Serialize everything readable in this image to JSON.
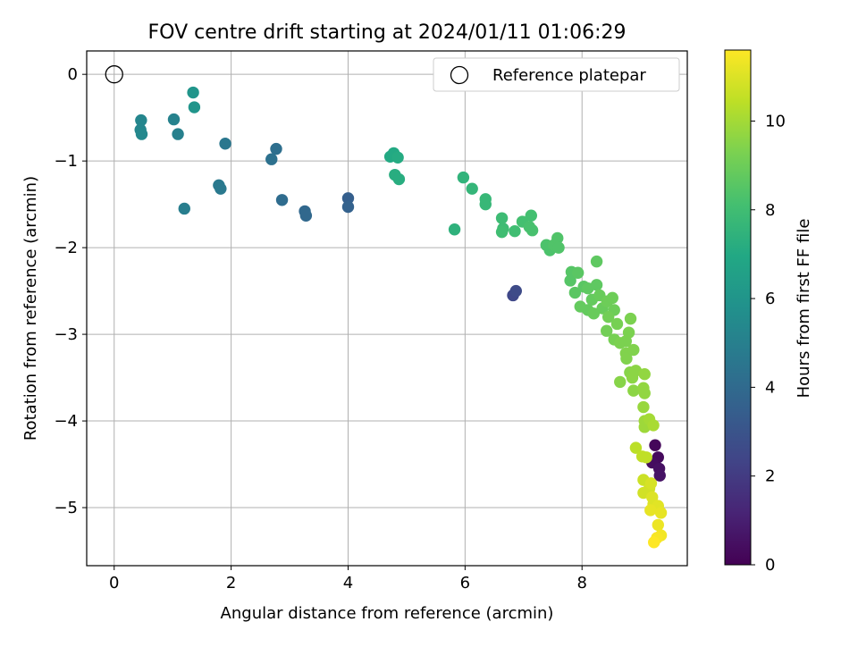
{
  "chart_data": {
    "type": "scatter",
    "title": "FOV centre drift starting at 2024/01/11 01:06:29",
    "xlabel": "Angular distance from reference (arcmin)",
    "ylabel": "Rotation from reference (arcmin)",
    "xlim": [
      -0.47,
      9.8
    ],
    "ylim": [
      -5.67,
      0.27
    ],
    "xticks": [
      0,
      2,
      4,
      6,
      8
    ],
    "yticks": [
      0,
      -1,
      -2,
      -3,
      -4,
      -5
    ],
    "grid": true,
    "legend": {
      "position": "top-right",
      "entries": [
        "Reference platepar"
      ]
    },
    "reference_point": {
      "x": 0,
      "y": 0
    },
    "colorbar": {
      "label": "Hours from first FF file",
      "colormap": "viridis",
      "range": [
        0,
        11.6
      ],
      "ticks": [
        0,
        2,
        4,
        6,
        8,
        10
      ]
    },
    "points": [
      {
        "x": 9.25,
        "y": -4.28,
        "h": 0.2
      },
      {
        "x": 9.3,
        "y": -4.42,
        "h": 0.3
      },
      {
        "x": 9.2,
        "y": -4.48,
        "h": 0.4
      },
      {
        "x": 9.32,
        "y": -4.55,
        "h": 0.5
      },
      {
        "x": 9.33,
        "y": -4.63,
        "h": 0.6
      },
      {
        "x": 6.82,
        "y": -2.55,
        "h": 2.5
      },
      {
        "x": 6.87,
        "y": -2.5,
        "h": 2.6
      },
      {
        "x": 4.0,
        "y": -1.43,
        "h": 3.5
      },
      {
        "x": 4.0,
        "y": -1.53,
        "h": 3.6
      },
      {
        "x": 3.26,
        "y": -1.58,
        "h": 3.9
      },
      {
        "x": 3.28,
        "y": -1.63,
        "h": 3.9
      },
      {
        "x": 2.87,
        "y": -1.45,
        "h": 4.1
      },
      {
        "x": 2.77,
        "y": -0.86,
        "h": 4.2
      },
      {
        "x": 2.69,
        "y": -0.98,
        "h": 4.3
      },
      {
        "x": 1.9,
        "y": -0.8,
        "h": 4.6
      },
      {
        "x": 1.79,
        "y": -1.28,
        "h": 4.7
      },
      {
        "x": 1.82,
        "y": -1.32,
        "h": 4.7
      },
      {
        "x": 1.2,
        "y": -1.55,
        "h": 4.9
      },
      {
        "x": 1.09,
        "y": -0.69,
        "h": 5.0
      },
      {
        "x": 1.02,
        "y": -0.52,
        "h": 5.1
      },
      {
        "x": 0.46,
        "y": -0.53,
        "h": 5.3
      },
      {
        "x": 0.45,
        "y": -0.64,
        "h": 5.3
      },
      {
        "x": 0.47,
        "y": -0.69,
        "h": 5.4
      },
      {
        "x": 1.35,
        "y": -0.21,
        "h": 6.0
      },
      {
        "x": 1.37,
        "y": -0.38,
        "h": 6.0
      },
      {
        "x": 4.72,
        "y": -0.95,
        "h": 7.0
      },
      {
        "x": 4.78,
        "y": -0.91,
        "h": 7.0
      },
      {
        "x": 4.85,
        "y": -0.96,
        "h": 7.1
      },
      {
        "x": 4.8,
        "y": -1.16,
        "h": 7.2
      },
      {
        "x": 4.87,
        "y": -1.21,
        "h": 7.2
      },
      {
        "x": 5.82,
        "y": -1.79,
        "h": 7.4
      },
      {
        "x": 5.97,
        "y": -1.19,
        "h": 7.5
      },
      {
        "x": 6.12,
        "y": -1.32,
        "h": 7.6
      },
      {
        "x": 6.35,
        "y": -1.44,
        "h": 7.7
      },
      {
        "x": 6.35,
        "y": -1.5,
        "h": 7.7
      },
      {
        "x": 6.63,
        "y": -1.66,
        "h": 7.9
      },
      {
        "x": 6.65,
        "y": -1.78,
        "h": 7.9
      },
      {
        "x": 6.63,
        "y": -1.82,
        "h": 8.0
      },
      {
        "x": 6.85,
        "y": -1.81,
        "h": 8.0
      },
      {
        "x": 6.98,
        "y": -1.7,
        "h": 8.1
      },
      {
        "x": 7.13,
        "y": -1.63,
        "h": 8.1
      },
      {
        "x": 7.1,
        "y": -1.76,
        "h": 8.2
      },
      {
        "x": 7.15,
        "y": -1.8,
        "h": 8.2
      },
      {
        "x": 7.39,
        "y": -1.97,
        "h": 8.3
      },
      {
        "x": 7.45,
        "y": -2.03,
        "h": 8.3
      },
      {
        "x": 7.52,
        "y": -1.97,
        "h": 8.4
      },
      {
        "x": 7.58,
        "y": -1.89,
        "h": 8.4
      },
      {
        "x": 7.6,
        "y": -2.0,
        "h": 8.4
      },
      {
        "x": 7.82,
        "y": -2.28,
        "h": 8.5
      },
      {
        "x": 7.8,
        "y": -2.38,
        "h": 8.5
      },
      {
        "x": 7.93,
        "y": -2.29,
        "h": 8.6
      },
      {
        "x": 7.88,
        "y": -2.52,
        "h": 8.6
      },
      {
        "x": 8.03,
        "y": -2.45,
        "h": 8.6
      },
      {
        "x": 8.1,
        "y": -2.47,
        "h": 8.7
      },
      {
        "x": 8.25,
        "y": -2.16,
        "h": 8.7
      },
      {
        "x": 8.25,
        "y": -2.43,
        "h": 8.7
      },
      {
        "x": 7.97,
        "y": -2.68,
        "h": 8.8
      },
      {
        "x": 8.1,
        "y": -2.72,
        "h": 8.8
      },
      {
        "x": 8.17,
        "y": -2.6,
        "h": 8.8
      },
      {
        "x": 8.2,
        "y": -2.76,
        "h": 8.9
      },
      {
        "x": 8.3,
        "y": -2.55,
        "h": 8.9
      },
      {
        "x": 8.35,
        "y": -2.7,
        "h": 8.9
      },
      {
        "x": 8.43,
        "y": -2.62,
        "h": 9.0
      },
      {
        "x": 8.52,
        "y": -2.58,
        "h": 9.0
      },
      {
        "x": 8.55,
        "y": -2.72,
        "h": 9.0
      },
      {
        "x": 8.45,
        "y": -2.8,
        "h": 9.1
      },
      {
        "x": 8.42,
        "y": -2.96,
        "h": 9.1
      },
      {
        "x": 8.55,
        "y": -3.06,
        "h": 9.2
      },
      {
        "x": 8.6,
        "y": -2.88,
        "h": 9.2
      },
      {
        "x": 8.65,
        "y": -3.1,
        "h": 9.3
      },
      {
        "x": 8.75,
        "y": -3.08,
        "h": 9.3
      },
      {
        "x": 8.8,
        "y": -2.98,
        "h": 9.3
      },
      {
        "x": 8.83,
        "y": -2.82,
        "h": 9.3
      },
      {
        "x": 8.75,
        "y": -3.22,
        "h": 9.4
      },
      {
        "x": 8.76,
        "y": -3.28,
        "h": 9.4
      },
      {
        "x": 8.88,
        "y": -3.18,
        "h": 9.4
      },
      {
        "x": 8.65,
        "y": -3.55,
        "h": 9.5
      },
      {
        "x": 8.82,
        "y": -3.44,
        "h": 9.5
      },
      {
        "x": 8.86,
        "y": -3.5,
        "h": 9.6
      },
      {
        "x": 8.92,
        "y": -3.42,
        "h": 9.6
      },
      {
        "x": 8.88,
        "y": -3.65,
        "h": 9.6
      },
      {
        "x": 9.07,
        "y": -3.46,
        "h": 9.7
      },
      {
        "x": 9.05,
        "y": -3.62,
        "h": 9.7
      },
      {
        "x": 9.07,
        "y": -3.68,
        "h": 9.7
      },
      {
        "x": 9.05,
        "y": -3.84,
        "h": 9.8
      },
      {
        "x": 9.07,
        "y": -4.0,
        "h": 9.9
      },
      {
        "x": 9.07,
        "y": -4.07,
        "h": 9.9
      },
      {
        "x": 9.15,
        "y": -3.98,
        "h": 10.0
      },
      {
        "x": 9.22,
        "y": -4.05,
        "h": 10.1
      },
      {
        "x": 8.92,
        "y": -4.31,
        "h": 10.4
      },
      {
        "x": 9.03,
        "y": -4.41,
        "h": 10.5
      },
      {
        "x": 9.1,
        "y": -4.42,
        "h": 10.5
      },
      {
        "x": 9.05,
        "y": -4.68,
        "h": 10.7
      },
      {
        "x": 9.05,
        "y": -4.83,
        "h": 10.8
      },
      {
        "x": 9.15,
        "y": -4.78,
        "h": 10.8
      },
      {
        "x": 9.18,
        "y": -4.72,
        "h": 10.9
      },
      {
        "x": 9.2,
        "y": -4.88,
        "h": 11.0
      },
      {
        "x": 9.22,
        "y": -4.96,
        "h": 11.0
      },
      {
        "x": 9.3,
        "y": -4.98,
        "h": 11.1
      },
      {
        "x": 9.17,
        "y": -5.03,
        "h": 11.2
      },
      {
        "x": 9.35,
        "y": -5.06,
        "h": 11.2
      },
      {
        "x": 9.3,
        "y": -5.2,
        "h": 11.3
      },
      {
        "x": 9.35,
        "y": -5.32,
        "h": 11.4
      },
      {
        "x": 9.28,
        "y": -5.35,
        "h": 11.5
      },
      {
        "x": 9.23,
        "y": -5.4,
        "h": 11.6
      }
    ]
  }
}
